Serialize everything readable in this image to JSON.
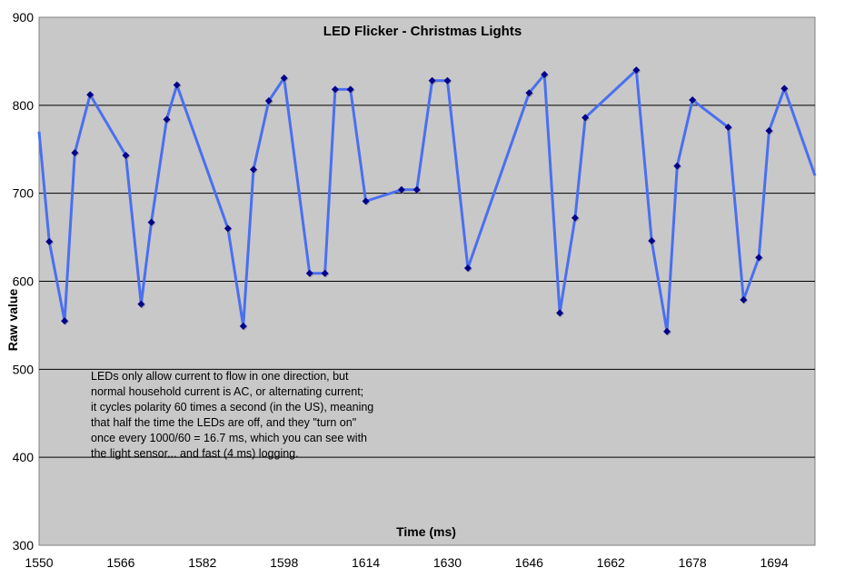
{
  "chart_data": {
    "type": "line",
    "title": "LED Flicker - Christmas Lights",
    "xlabel": "Time (ms)",
    "ylabel": "Raw value",
    "xlim": [
      1550,
      1702
    ],
    "ylim": [
      300,
      900
    ],
    "xticks": [
      1550,
      1566,
      1582,
      1598,
      1614,
      1630,
      1646,
      1662,
      1678,
      1694
    ],
    "yticks": [
      300,
      400,
      500,
      600,
      700,
      800,
      900
    ],
    "grid": "horizontal",
    "legend": "none",
    "series": [
      {
        "color": "#4a6ff0",
        "marker_color": "#00008b",
        "x": [
          1552,
          1555,
          1557,
          1560,
          1567,
          1570,
          1572,
          1575,
          1577,
          1587,
          1590,
          1592,
          1595,
          1598,
          1603,
          1606,
          1608,
          1611,
          1614,
          1621,
          1624,
          1627,
          1630,
          1634,
          1646,
          1649,
          1652,
          1655,
          1657,
          1667,
          1670,
          1673,
          1675,
          1678,
          1685,
          1688,
          1691,
          1693,
          1696
        ],
        "y": [
          645,
          555,
          746,
          812,
          743,
          574,
          667,
          784,
          823,
          660,
          549,
          727,
          805,
          831,
          609,
          609,
          818,
          818,
          691,
          704,
          704,
          828,
          828,
          615,
          814,
          835,
          564,
          672,
          786,
          840,
          646,
          543,
          731,
          806,
          775,
          579,
          627,
          771,
          819
        ]
      }
    ],
    "line_extends_left": 770,
    "line_extends_right": 720,
    "annotation": [
      "LEDs only allow current to flow in one direction, but",
      "normal household current is AC, or alternating current;",
      "it cycles polarity 60 times a second (in the US), meaning",
      "that half the time the LEDs are off, and they \"turn on\"",
      "once every 1000/60 = 16.7 ms, which you can see with",
      "the light sensor... and fast (4 ms) logging."
    ]
  }
}
